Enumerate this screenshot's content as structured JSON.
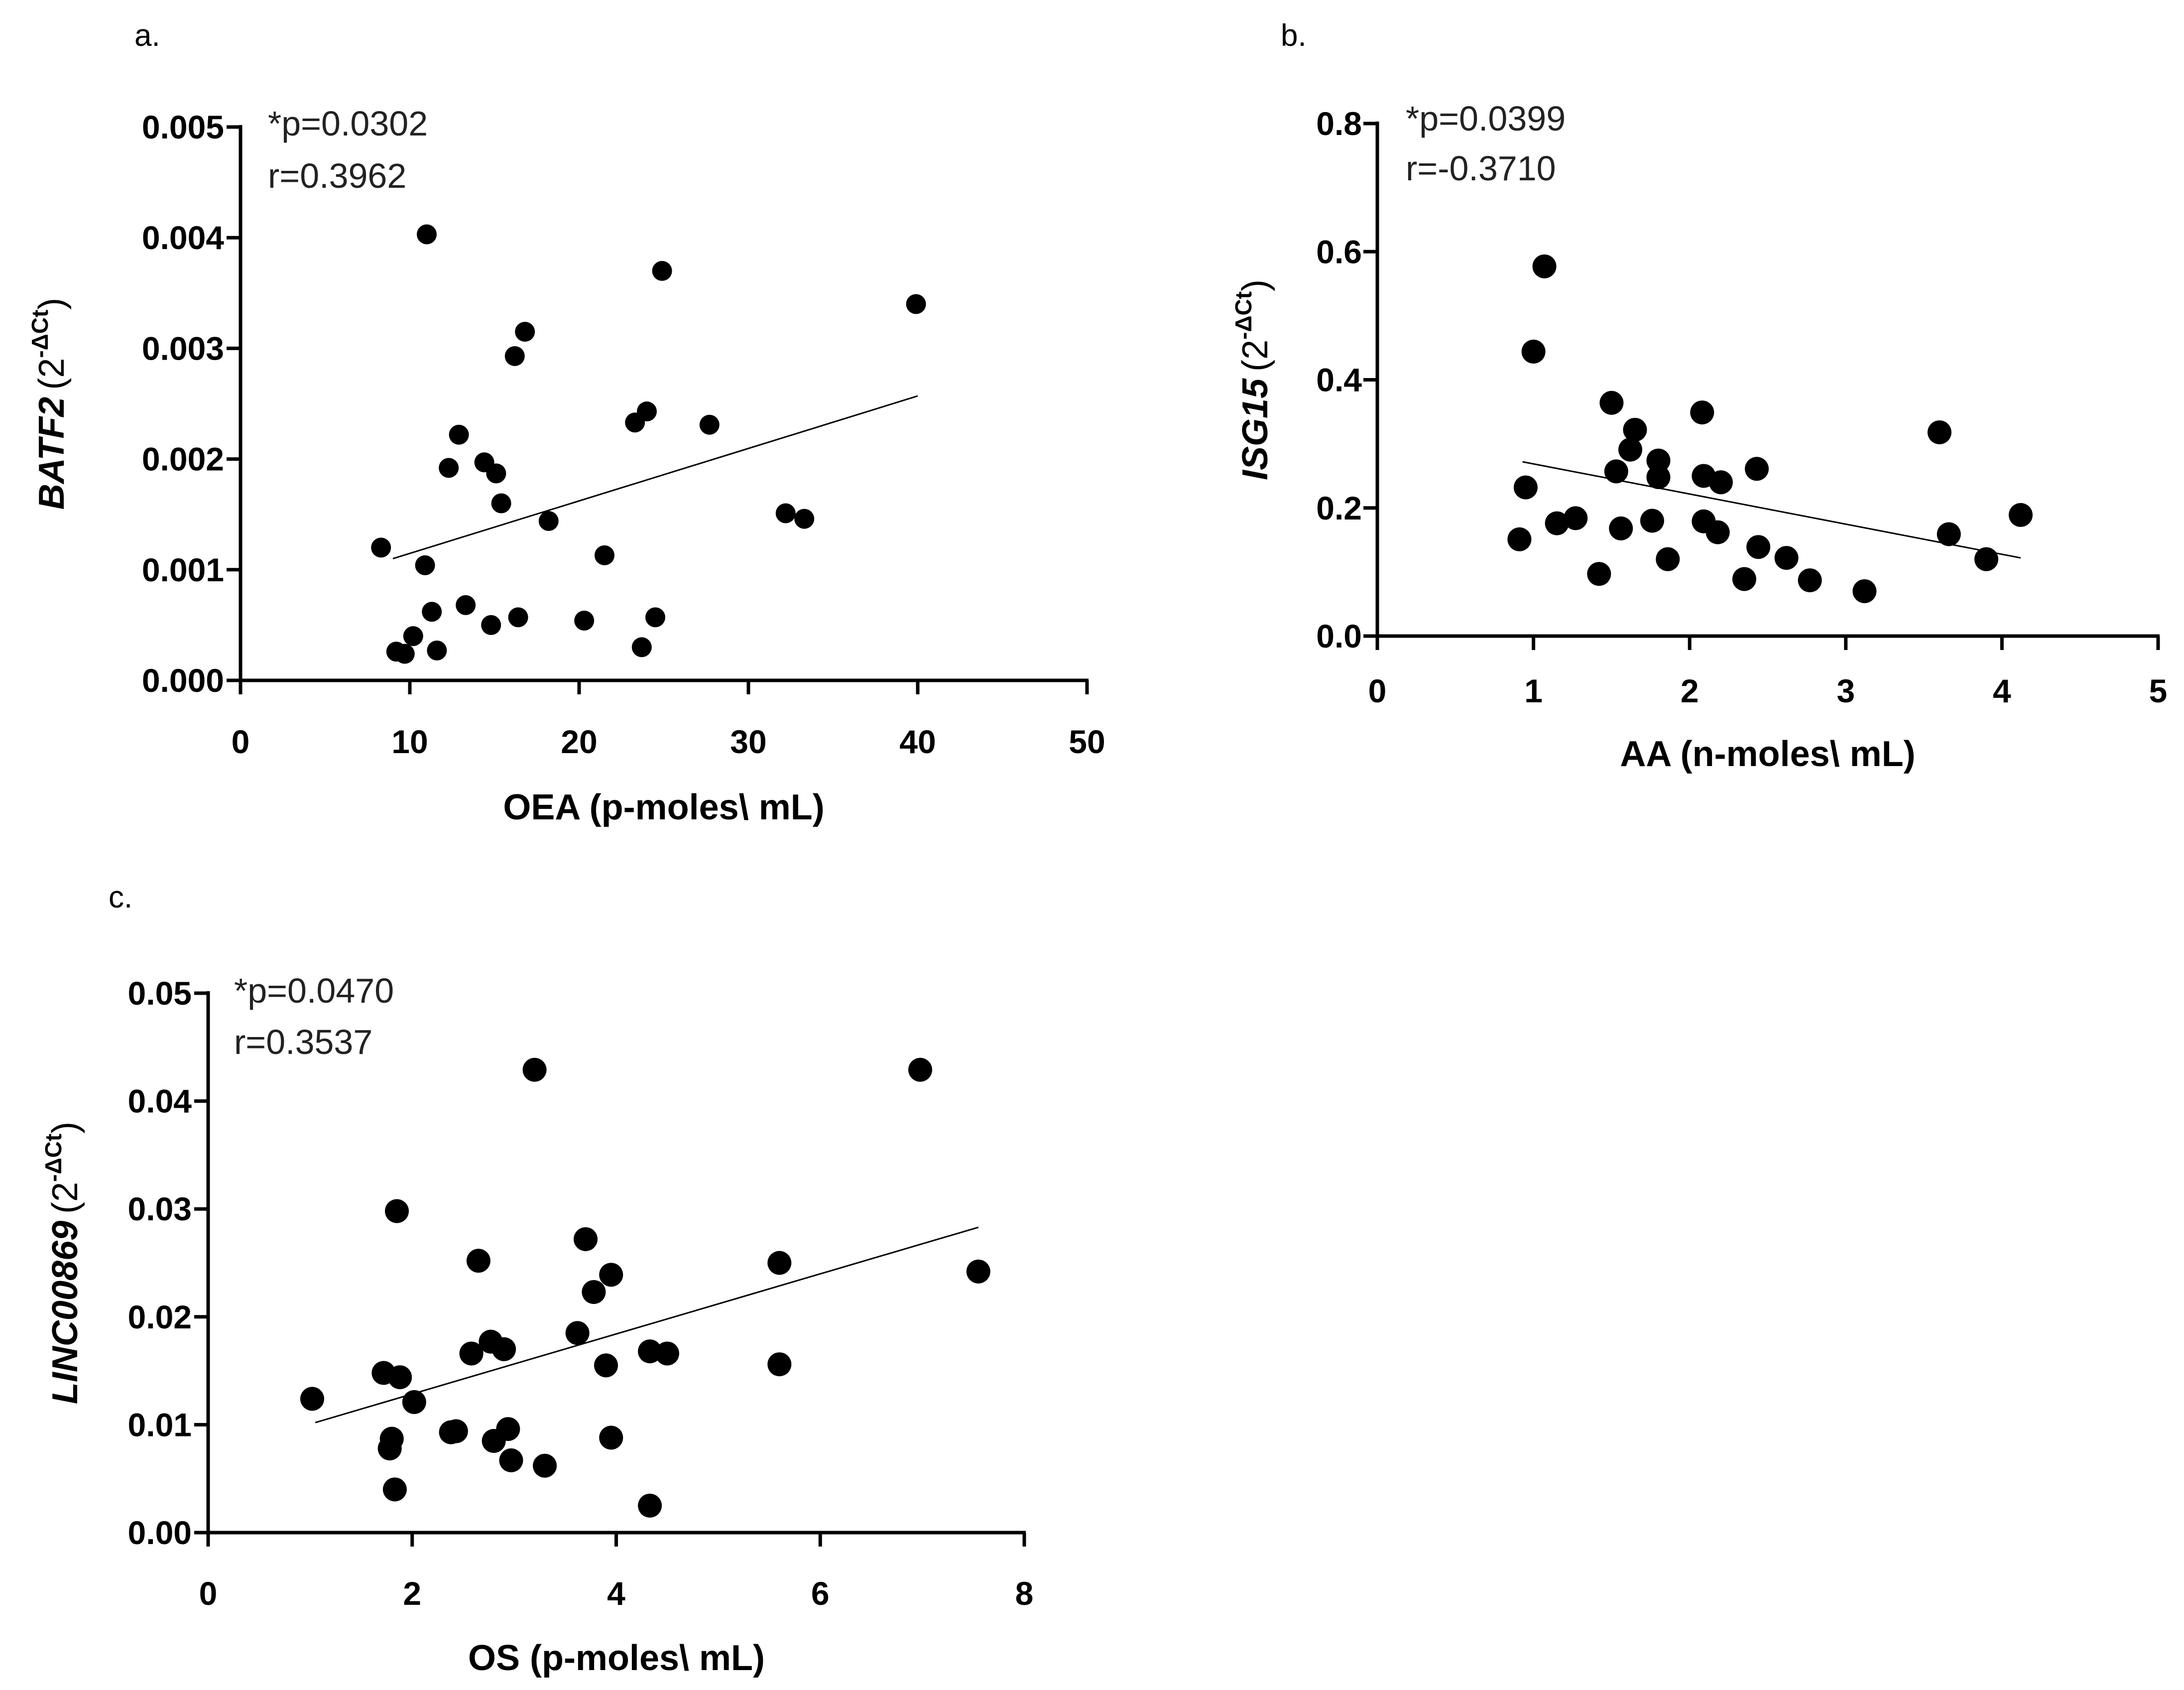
{
  "chart_data": [
    {
      "type": "scatter",
      "panel_label": "a.",
      "xlabel": "OEA (p-moles\\ mL)",
      "ylabel": {
        "gene": "BATF2",
        "unit_prefix": "(2",
        "unit_sup": "-ΔCt",
        "unit_suffix": ")"
      },
      "xlim": [
        0,
        50
      ],
      "ylim": [
        0,
        0.005
      ],
      "xticks": [
        0,
        10,
        20,
        30,
        40,
        50
      ],
      "xtick_labels": [
        "0",
        "10",
        "20",
        "30",
        "40",
        "50"
      ],
      "yticks": [
        0,
        0.001,
        0.002,
        0.003,
        0.004,
        0.005
      ],
      "ytick_labels": [
        "0.000",
        "0.001",
        "0.002",
        "0.003",
        "0.004",
        "0.005"
      ],
      "stats": {
        "p": "*p=0.0302",
        "r": "r=0.3962"
      },
      "fit_line": {
        "x": [
          9,
          40
        ],
        "y": [
          0.0011,
          0.00257
        ]
      },
      "points": [
        {
          "x": 8.3,
          "y": 0.0012
        },
        {
          "x": 11.0,
          "y": 0.00403
        },
        {
          "x": 24.9,
          "y": 0.0037
        },
        {
          "x": 39.9,
          "y": 0.0034
        },
        {
          "x": 16.8,
          "y": 0.00315
        },
        {
          "x": 16.2,
          "y": 0.00293
        },
        {
          "x": 24.0,
          "y": 0.00243
        },
        {
          "x": 23.3,
          "y": 0.00233
        },
        {
          "x": 27.7,
          "y": 0.00231
        },
        {
          "x": 12.9,
          "y": 0.00222
        },
        {
          "x": 14.4,
          "y": 0.00197
        },
        {
          "x": 12.3,
          "y": 0.00192
        },
        {
          "x": 15.1,
          "y": 0.00187
        },
        {
          "x": 15.4,
          "y": 0.0016
        },
        {
          "x": 32.2,
          "y": 0.00151
        },
        {
          "x": 33.3,
          "y": 0.00146
        },
        {
          "x": 18.2,
          "y": 0.00144
        },
        {
          "x": 21.5,
          "y": 0.00113
        },
        {
          "x": 10.9,
          "y": 0.00104
        },
        {
          "x": 13.3,
          "y": 0.00068
        },
        {
          "x": 11.3,
          "y": 0.00062
        },
        {
          "x": 16.4,
          "y": 0.00057
        },
        {
          "x": 24.5,
          "y": 0.00057
        },
        {
          "x": 20.3,
          "y": 0.00054
        },
        {
          "x": 14.8,
          "y": 0.0005
        },
        {
          "x": 10.2,
          "y": 0.0004
        },
        {
          "x": 23.7,
          "y": 0.0003
        },
        {
          "x": 9.2,
          "y": 0.00026
        },
        {
          "x": 11.6,
          "y": 0.00027
        },
        {
          "x": 9.7,
          "y": 0.00024
        }
      ]
    },
    {
      "type": "scatter",
      "panel_label": "b.",
      "xlabel": "AA (n-moles\\ mL)",
      "ylabel": {
        "gene": "ISG15",
        "unit_prefix": "(2",
        "unit_sup": "-ΔCt",
        "unit_suffix": ")"
      },
      "xlim": [
        0,
        5
      ],
      "ylim": [
        0,
        0.8
      ],
      "xticks": [
        0,
        1,
        2,
        3,
        4,
        5
      ],
      "xtick_labels": [
        "0",
        "1",
        "2",
        "3",
        "4",
        "5"
      ],
      "yticks": [
        0,
        0.2,
        0.4,
        0.6,
        0.8
      ],
      "ytick_labels": [
        "0.0",
        "0.2",
        "0.4",
        "0.6",
        "0.8"
      ],
      "stats": {
        "p": "*p=0.0399",
        "r": "r=-0.3710"
      },
      "fit_line": {
        "x": [
          0.93,
          4.12
        ],
        "y": [
          0.272,
          0.122
        ]
      },
      "points": [
        {
          "x": 1.07,
          "y": 0.577
        },
        {
          "x": 1.0,
          "y": 0.444
        },
        {
          "x": 1.5,
          "y": 0.364
        },
        {
          "x": 2.08,
          "y": 0.349
        },
        {
          "x": 1.65,
          "y": 0.322
        },
        {
          "x": 3.6,
          "y": 0.318
        },
        {
          "x": 1.62,
          "y": 0.291
        },
        {
          "x": 1.8,
          "y": 0.274
        },
        {
          "x": 2.43,
          "y": 0.261
        },
        {
          "x": 1.53,
          "y": 0.257
        },
        {
          "x": 2.09,
          "y": 0.25
        },
        {
          "x": 1.8,
          "y": 0.248
        },
        {
          "x": 2.2,
          "y": 0.24
        },
        {
          "x": 0.95,
          "y": 0.232
        },
        {
          "x": 4.12,
          "y": 0.189
        },
        {
          "x": 1.27,
          "y": 0.184
        },
        {
          "x": 1.76,
          "y": 0.18
        },
        {
          "x": 2.09,
          "y": 0.179
        },
        {
          "x": 1.15,
          "y": 0.176
        },
        {
          "x": 1.56,
          "y": 0.168
        },
        {
          "x": 2.18,
          "y": 0.162
        },
        {
          "x": 3.66,
          "y": 0.159
        },
        {
          "x": 0.91,
          "y": 0.151
        },
        {
          "x": 2.44,
          "y": 0.139
        },
        {
          "x": 2.62,
          "y": 0.122
        },
        {
          "x": 1.86,
          "y": 0.12
        },
        {
          "x": 3.9,
          "y": 0.12
        },
        {
          "x": 1.42,
          "y": 0.097
        },
        {
          "x": 2.35,
          "y": 0.089
        },
        {
          "x": 2.77,
          "y": 0.087
        },
        {
          "x": 3.12,
          "y": 0.07
        }
      ]
    },
    {
      "type": "scatter",
      "panel_label": "c.",
      "xlabel": "OS (p-moles\\ mL)",
      "ylabel": {
        "gene": "LINC00869",
        "unit_prefix": "(2",
        "unit_sup": "-ΔCt",
        "unit_suffix": ")"
      },
      "xlim": [
        0,
        8
      ],
      "ylim": [
        0,
        0.05
      ],
      "xticks": [
        0,
        2,
        4,
        6,
        8
      ],
      "xtick_labels": [
        "0",
        "2",
        "4",
        "6",
        "8"
      ],
      "yticks": [
        0,
        0.01,
        0.02,
        0.03,
        0.04,
        0.05
      ],
      "ytick_labels": [
        "0.00",
        "0.01",
        "0.02",
        "0.03",
        "0.04",
        "0.05"
      ],
      "stats": {
        "p": "*p=0.0470",
        "r": "r=0.3537"
      },
      "fit_line": {
        "x": [
          1.05,
          7.55
        ],
        "y": [
          0.0102,
          0.0283
        ]
      },
      "points": [
        {
          "x": 3.2,
          "y": 0.0429
        },
        {
          "x": 6.98,
          "y": 0.0429
        },
        {
          "x": 1.85,
          "y": 0.0298
        },
        {
          "x": 3.7,
          "y": 0.0272
        },
        {
          "x": 2.65,
          "y": 0.0252
        },
        {
          "x": 5.6,
          "y": 0.025
        },
        {
          "x": 7.55,
          "y": 0.0242
        },
        {
          "x": 3.95,
          "y": 0.0239
        },
        {
          "x": 3.78,
          "y": 0.0223
        },
        {
          "x": 3.62,
          "y": 0.0185
        },
        {
          "x": 2.77,
          "y": 0.0177
        },
        {
          "x": 2.9,
          "y": 0.017
        },
        {
          "x": 4.33,
          "y": 0.0168
        },
        {
          "x": 2.58,
          "y": 0.0166
        },
        {
          "x": 4.5,
          "y": 0.0166
        },
        {
          "x": 5.6,
          "y": 0.0156
        },
        {
          "x": 3.9,
          "y": 0.0155
        },
        {
          "x": 1.72,
          "y": 0.0148
        },
        {
          "x": 1.88,
          "y": 0.0144
        },
        {
          "x": 1.02,
          "y": 0.0124
        },
        {
          "x": 2.02,
          "y": 0.0121
        },
        {
          "x": 2.94,
          "y": 0.0096
        },
        {
          "x": 2.43,
          "y": 0.0094
        },
        {
          "x": 2.38,
          "y": 0.0093
        },
        {
          "x": 3.95,
          "y": 0.0088
        },
        {
          "x": 1.8,
          "y": 0.0087
        },
        {
          "x": 2.8,
          "y": 0.0085
        },
        {
          "x": 1.78,
          "y": 0.0078
        },
        {
          "x": 2.97,
          "y": 0.0067
        },
        {
          "x": 3.3,
          "y": 0.0062
        },
        {
          "x": 1.83,
          "y": 0.004
        },
        {
          "x": 4.33,
          "y": 0.0025
        }
      ]
    }
  ]
}
